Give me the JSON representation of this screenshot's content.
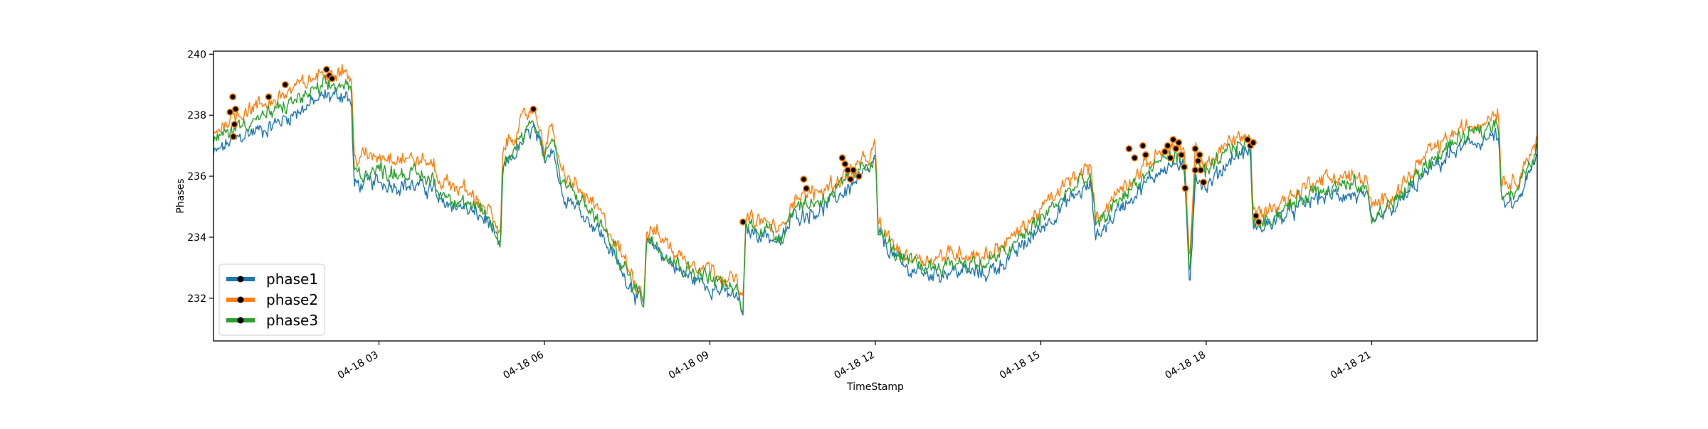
{
  "chart_data": {
    "type": "line",
    "title": "",
    "xlabel": "TimeStamp",
    "ylabel": "Phases",
    "x_range": [
      "04-18 00:00",
      "04-19 00:00"
    ],
    "ylim": [
      230.6,
      240.1
    ],
    "yticks": [
      232,
      234,
      236,
      238,
      240
    ],
    "xtick_labels": [
      "04-18 03",
      "04-18 06",
      "04-18 09",
      "04-18 12",
      "04-18 15",
      "04-18 18",
      "04-18 21"
    ],
    "xtick_hours": [
      3,
      6,
      9,
      12,
      15,
      18,
      21
    ],
    "grid": false,
    "legend": "lower-left",
    "legend_entries": [
      "phase1",
      "phase2",
      "phase3"
    ],
    "colors": {
      "phase1": "#1f77b4",
      "phase2": "#ff7f0e",
      "phase3": "#2ca02c",
      "marker": "#000000"
    },
    "anchor_hours": [
      0,
      0.3,
      0.6,
      1,
      1.5,
      2,
      2.4,
      2.5,
      2.55,
      3,
      3.5,
      4,
      4.05,
      4.5,
      5,
      5.2,
      5.25,
      5.5,
      5.8,
      6,
      6.15,
      6.3,
      6.5,
      7,
      7.5,
      7.8,
      7.85,
      8,
      8.5,
      9,
      9.5,
      9.6,
      9.65,
      10,
      10.3,
      10.5,
      11,
      11.5,
      11.9,
      12,
      12.05,
      12.5,
      13,
      13.5,
      14,
      14.5,
      15,
      15.5,
      15.9,
      16,
      16.5,
      17,
      17.2,
      17.5,
      17.6,
      17.7,
      17.8,
      18,
      18.5,
      18.8,
      18.85,
      19,
      19.5,
      20,
      20.5,
      20.9,
      21,
      21.5,
      22,
      22.5,
      23,
      23.3,
      23.35,
      23.6,
      24
    ],
    "series": [
      {
        "name": "phase1",
        "values": [
          236.7,
          237.1,
          237.4,
          237.6,
          238.1,
          238.6,
          238.7,
          238.3,
          235.7,
          235.8,
          235.7,
          235.6,
          235.2,
          235.0,
          234.5,
          233.5,
          236.2,
          236.8,
          237.6,
          236.5,
          237.1,
          235.5,
          235.2,
          234.2,
          232.6,
          231.8,
          233.7,
          233.7,
          232.8,
          232.4,
          232.0,
          231.5,
          234.2,
          234.1,
          233.8,
          234.7,
          234.9,
          235.6,
          236.2,
          236.6,
          234.1,
          233.0,
          232.8,
          232.9,
          232.8,
          233.4,
          234.3,
          235.2,
          235.7,
          234.0,
          235.1,
          235.9,
          236.3,
          236.4,
          236.1,
          232.4,
          236.1,
          235.6,
          236.7,
          236.8,
          234.3,
          234.3,
          234.8,
          235.3,
          235.4,
          235.3,
          234.4,
          235.1,
          236.1,
          236.8,
          237.2,
          237.3,
          235.1,
          235.0,
          236.6
        ]
      },
      {
        "name": "phase2",
        "values": [
          237.4,
          237.9,
          238.2,
          238.4,
          238.9,
          239.4,
          239.5,
          239.1,
          236.6,
          236.7,
          236.6,
          236.4,
          235.9,
          235.6,
          234.9,
          233.9,
          236.9,
          237.5,
          238.3,
          237.0,
          237.6,
          236.1,
          235.8,
          234.8,
          233.1,
          232.1,
          234.2,
          234.2,
          233.3,
          233.0,
          232.5,
          231.8,
          234.6,
          234.5,
          234.2,
          235.3,
          235.5,
          236.1,
          236.6,
          237.0,
          234.4,
          233.4,
          233.3,
          233.5,
          233.4,
          234.0,
          234.9,
          235.8,
          236.3,
          234.6,
          235.7,
          236.5,
          236.9,
          237.0,
          236.7,
          233.1,
          236.8,
          236.3,
          237.3,
          237.3,
          234.8,
          234.8,
          235.3,
          235.9,
          236.0,
          235.9,
          234.9,
          235.6,
          236.7,
          237.4,
          237.8,
          238.2,
          235.9,
          235.8,
          237.2
        ]
      },
      {
        "name": "phase3",
        "values": [
          237.1,
          237.5,
          237.8,
          238.0,
          238.5,
          238.9,
          239.0,
          238.7,
          236.1,
          236.2,
          236.1,
          235.9,
          235.5,
          235.2,
          234.6,
          233.7,
          236.4,
          237.1,
          237.9,
          236.7,
          237.3,
          235.8,
          235.5,
          234.5,
          232.8,
          231.9,
          233.9,
          233.9,
          233.0,
          232.7,
          232.2,
          231.6,
          234.4,
          234.3,
          234.0,
          235.0,
          235.2,
          235.8,
          236.4,
          236.8,
          234.2,
          233.2,
          233.0,
          233.2,
          233.1,
          233.7,
          234.6,
          235.5,
          236.0,
          234.3,
          235.4,
          236.2,
          236.6,
          236.7,
          236.4,
          232.7,
          236.5,
          236.0,
          237.0,
          237.1,
          234.5,
          234.5,
          235.0,
          235.6,
          235.7,
          235.6,
          234.6,
          235.3,
          236.4,
          237.1,
          237.5,
          237.8,
          235.5,
          235.4,
          236.9
        ]
      }
    ],
    "markers": [
      {
        "x": 0.3,
        "y": 238.1
      },
      {
        "x": 0.35,
        "y": 238.6
      },
      {
        "x": 0.4,
        "y": 238.2
      },
      {
        "x": 0.38,
        "y": 237.7
      },
      {
        "x": 0.36,
        "y": 237.3
      },
      {
        "x": 1.0,
        "y": 238.6
      },
      {
        "x": 1.3,
        "y": 239.0
      },
      {
        "x": 2.05,
        "y": 239.5
      },
      {
        "x": 2.1,
        "y": 239.3
      },
      {
        "x": 2.15,
        "y": 239.2
      },
      {
        "x": 5.8,
        "y": 238.2
      },
      {
        "x": 9.6,
        "y": 234.5
      },
      {
        "x": 10.7,
        "y": 235.9
      },
      {
        "x": 10.75,
        "y": 235.6
      },
      {
        "x": 11.4,
        "y": 236.6
      },
      {
        "x": 11.45,
        "y": 236.4
      },
      {
        "x": 11.5,
        "y": 236.2
      },
      {
        "x": 11.55,
        "y": 235.9
      },
      {
        "x": 11.6,
        "y": 236.2
      },
      {
        "x": 11.7,
        "y": 236.0
      },
      {
        "x": 16.6,
        "y": 236.9
      },
      {
        "x": 16.7,
        "y": 236.6
      },
      {
        "x": 16.85,
        "y": 237.0
      },
      {
        "x": 16.9,
        "y": 236.7
      },
      {
        "x": 17.25,
        "y": 236.8
      },
      {
        "x": 17.3,
        "y": 237.0
      },
      {
        "x": 17.35,
        "y": 236.6
      },
      {
        "x": 17.4,
        "y": 237.2
      },
      {
        "x": 17.45,
        "y": 236.9
      },
      {
        "x": 17.5,
        "y": 237.1
      },
      {
        "x": 17.55,
        "y": 236.7
      },
      {
        "x": 17.6,
        "y": 236.3
      },
      {
        "x": 17.62,
        "y": 235.6
      },
      {
        "x": 17.8,
        "y": 236.9
      },
      {
        "x": 17.85,
        "y": 236.5
      },
      {
        "x": 17.9,
        "y": 236.2
      },
      {
        "x": 17.95,
        "y": 235.8
      },
      {
        "x": 17.8,
        "y": 236.2
      },
      {
        "x": 17.88,
        "y": 236.7
      },
      {
        "x": 18.75,
        "y": 237.2
      },
      {
        "x": 18.8,
        "y": 237.0
      },
      {
        "x": 18.85,
        "y": 237.1
      },
      {
        "x": 18.9,
        "y": 234.7
      },
      {
        "x": 18.95,
        "y": 234.5
      }
    ]
  }
}
